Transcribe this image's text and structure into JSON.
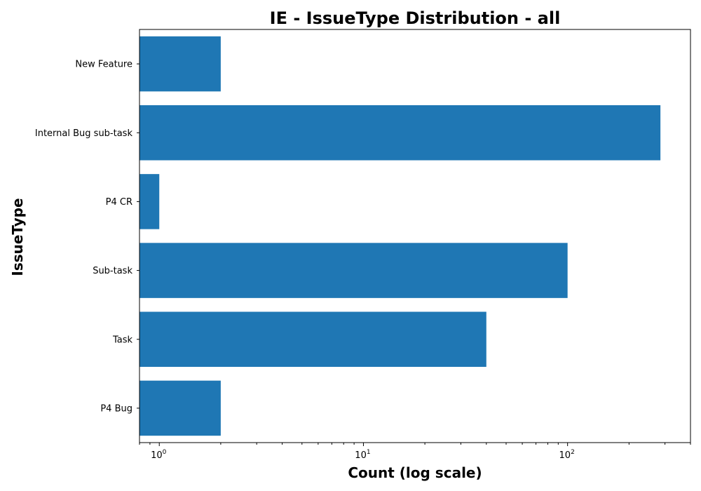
{
  "chart_data": {
    "type": "bar",
    "orientation": "horizontal",
    "title": "IE - IssueType Distribution - all",
    "xlabel": "Count (log scale)",
    "ylabel": "IssueType",
    "x_scale": "log",
    "xlim": [
      0.8,
      400
    ],
    "x_ticks": [
      {
        "value": 1,
        "base": "10",
        "exp": "0"
      },
      {
        "value": 10,
        "base": "10",
        "exp": "1"
      },
      {
        "value": 100,
        "base": "10",
        "exp": "2"
      }
    ],
    "categories": [
      "New Feature",
      "Internal Bug sub-task",
      "P4 CR",
      "Sub-task",
      "Task",
      "P4 Bug"
    ],
    "values": [
      2,
      285,
      1,
      100,
      40,
      2
    ],
    "bar_color": "#1f77b4",
    "grid": false,
    "legend": "none"
  }
}
